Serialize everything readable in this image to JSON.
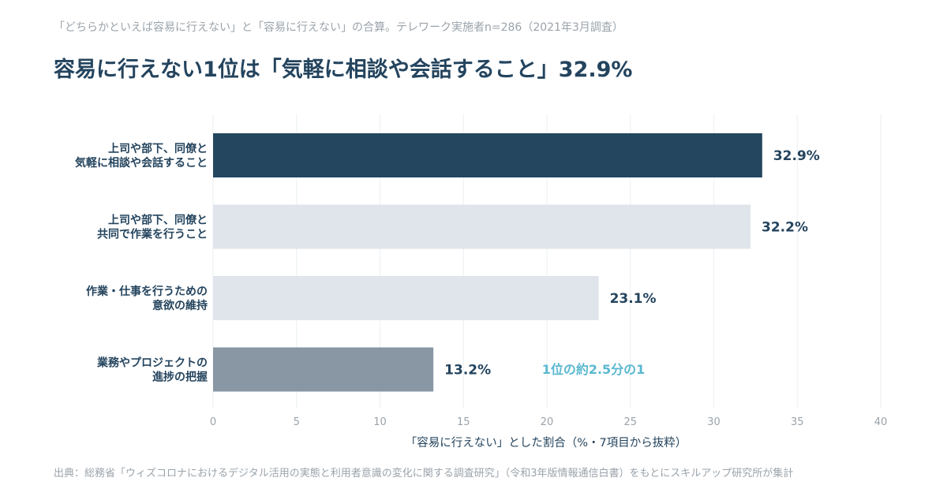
{
  "header": {
    "subtitle": "「どちらかといえば容易に行えない」と「容易に行えない」の合算。テレワーク実施者n=286（2021年3月調査）",
    "title": "容易に行えない1位は「気軽に相談や会話すること」32.9%"
  },
  "footer": {
    "source": "出典：総務省「ウィズコロナにおけるデジタル活用の実態と利用者意識の変化に関する調査研究」（令和3年版情報通信白書）をもとにスキルアップ研究所が集計"
  },
  "chart_data": {
    "type": "bar",
    "orientation": "horizontal",
    "categories": [
      [
        "上司や部下、同僚と",
        "気軽に相談や会話すること"
      ],
      [
        "上司や部下、同僚と",
        "共同で作業を行うこと"
      ],
      [
        "作業・仕事を行うための",
        "意欲の維持"
      ],
      [
        "業務やプロジェクトの",
        "進捗の把握"
      ]
    ],
    "values": [
      32.9,
      32.2,
      23.1,
      13.2
    ],
    "value_labels": [
      "32.9%",
      "32.2%",
      "23.1%",
      "13.2%"
    ],
    "bar_colors": [
      "#24465f",
      "#dfe5ea",
      "#dfe5ea",
      "#8997a5"
    ],
    "xlabel": "「容易に行えない」とした割合（%・7項目から抜粋）",
    "xlim": [
      0,
      40
    ],
    "xticks": [
      0,
      5,
      10,
      15,
      20,
      25,
      30,
      35,
      40
    ],
    "grid": true,
    "annotation": "1位の約2.5分の1"
  }
}
